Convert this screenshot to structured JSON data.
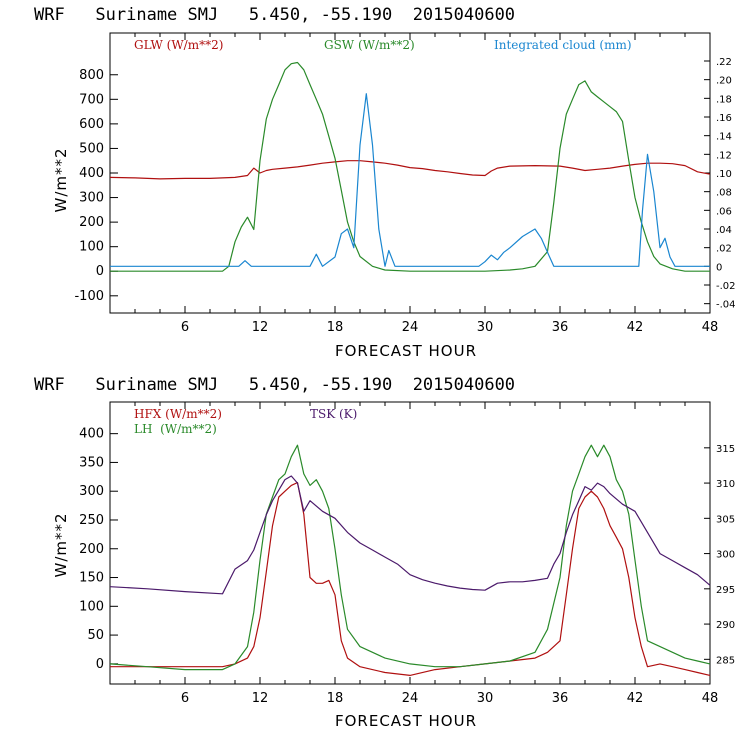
{
  "chart_data": [
    {
      "type": "line",
      "title": "WRF   Suriname SMJ   5.450, -55.190  2015040600",
      "xlabel": "FORECAST HOUR",
      "ylabel": "W/m**2",
      "xlim": [
        0,
        48
      ],
      "ylim": [
        -170,
        970
      ],
      "xticks": [
        "6",
        "12",
        "18",
        "24",
        "30",
        "36",
        "42",
        "48"
      ],
      "yticks": [
        "-100",
        "0",
        "100",
        "200",
        "300",
        "400",
        "500",
        "600",
        "700",
        "800"
      ],
      "y2lim": [
        -0.05,
        0.25
      ],
      "y2ticks": [
        "-.04",
        "-.02",
        "0",
        ".02",
        ".04",
        ".06",
        ".08",
        ".10",
        ".12",
        ".14",
        ".16",
        ".18",
        ".20",
        ".22"
      ],
      "series": [
        {
          "name": "GLW (W/m**2)",
          "color": "#b01010",
          "axis": "left",
          "x": [
            0,
            2,
            4,
            6,
            8,
            10,
            11,
            11.5,
            12,
            12.5,
            13,
            14,
            15,
            16,
            17,
            18,
            19,
            20,
            21,
            22,
            23,
            24,
            25,
            26,
            27,
            28,
            29,
            30,
            30.5,
            31,
            32,
            34,
            36,
            37,
            38,
            39,
            40,
            41,
            42,
            43,
            44,
            45,
            46,
            47,
            48
          ],
          "values": [
            382,
            380,
            376,
            378,
            378,
            382,
            390,
            420,
            400,
            410,
            415,
            420,
            425,
            432,
            440,
            445,
            450,
            450,
            445,
            440,
            432,
            422,
            418,
            410,
            405,
            398,
            392,
            390,
            408,
            420,
            428,
            430,
            428,
            420,
            410,
            415,
            420,
            428,
            435,
            440,
            440,
            438,
            430,
            405,
            395
          ]
        },
        {
          "name": "GSW (W/m**2)",
          "color": "#2a8a2a",
          "axis": "left",
          "x": [
            0,
            9,
            9.5,
            10,
            10.5,
            11,
            11.5,
            12,
            12.5,
            13,
            13.5,
            14,
            14.5,
            15,
            15.5,
            16,
            16.5,
            17,
            17.5,
            18,
            18.5,
            19,
            19.5,
            20,
            21,
            22,
            24,
            30,
            32,
            33,
            34,
            35,
            35.5,
            36,
            36.5,
            37,
            37.5,
            38,
            38.5,
            39,
            39.5,
            40,
            40.5,
            41,
            41.5,
            42,
            42.5,
            43,
            43.5,
            44,
            45,
            46,
            48
          ],
          "values": [
            0,
            0,
            20,
            120,
            180,
            220,
            170,
            450,
            620,
            700,
            760,
            820,
            845,
            850,
            820,
            760,
            700,
            640,
            550,
            460,
            330,
            200,
            120,
            60,
            20,
            5,
            0,
            0,
            5,
            10,
            20,
            80,
            280,
            500,
            640,
            700,
            760,
            775,
            730,
            710,
            690,
            670,
            650,
            610,
            450,
            300,
            200,
            120,
            60,
            30,
            10,
            0,
            0
          ]
        },
        {
          "name": "Integrated cloud (mm)",
          "color": "#1a86d0",
          "axis": "right",
          "x": [
            0,
            10.3,
            10.8,
            11.3,
            16,
            16.5,
            17,
            18,
            18.5,
            19,
            19.5,
            20,
            20.5,
            21,
            21.5,
            22,
            22.3,
            22.8,
            23.2,
            29.5,
            30,
            30.5,
            31,
            31.5,
            32,
            33,
            34,
            34.5,
            35,
            35.5,
            42.3,
            42.6,
            43,
            43.5,
            44,
            44.4,
            44.8,
            45.2,
            46,
            48
          ],
          "values": [
            0,
            0,
            0.006,
            0,
            0,
            0.013,
            0,
            0.01,
            0.035,
            0.04,
            0.02,
            0.13,
            0.185,
            0.13,
            0.04,
            0,
            0.017,
            0,
            0,
            0,
            0.005,
            0.012,
            0.007,
            0.015,
            0.02,
            0.032,
            0.04,
            0.03,
            0.015,
            0,
            0,
            0.06,
            0.12,
            0.08,
            0.02,
            0.03,
            0.01,
            0,
            0,
            0
          ]
        }
      ]
    },
    {
      "type": "line",
      "title": "WRF   Suriname SMJ   5.450, -55.190  2015040600",
      "xlabel": "FORECAST HOUR",
      "ylabel": "W/m**2",
      "xlim": [
        0,
        48
      ],
      "ylim": [
        -35,
        455
      ],
      "xticks": [
        "6",
        "12",
        "18",
        "24",
        "30",
        "36",
        "42",
        "48"
      ],
      "yticks": [
        "0",
        "50",
        "100",
        "150",
        "200",
        "250",
        "300",
        "350",
        "400"
      ],
      "y2lim": [
        281.5,
        321.5
      ],
      "y2ticks": [
        "285",
        "290",
        "295",
        "300",
        "305",
        "310",
        "315"
      ],
      "series": [
        {
          "name": "HFX (W/m**2)",
          "color": "#b01010",
          "axis": "left",
          "x": [
            0,
            9,
            10,
            11,
            11.5,
            12,
            12.5,
            13,
            13.5,
            14,
            14.5,
            15,
            15.5,
            16,
            16.5,
            17,
            17.5,
            18,
            18.5,
            19,
            20,
            22,
            24,
            26,
            28,
            30,
            32,
            34,
            35,
            36,
            36.5,
            37,
            37.5,
            38,
            38.5,
            39,
            39.5,
            40,
            40.5,
            41,
            41.5,
            42,
            42.5,
            43,
            44,
            45,
            46,
            47,
            48
          ],
          "values": [
            -5,
            -5,
            0,
            10,
            30,
            80,
            160,
            240,
            290,
            300,
            310,
            315,
            260,
            150,
            140,
            140,
            145,
            120,
            40,
            10,
            -5,
            -15,
            -20,
            -10,
            -5,
            0,
            5,
            10,
            20,
            40,
            120,
            200,
            270,
            290,
            300,
            290,
            270,
            240,
            220,
            200,
            150,
            80,
            30,
            -5,
            0,
            -5,
            -10,
            -15,
            -20
          ]
        },
        {
          "name": "LH  (W/m**2)",
          "color": "#2a8a2a",
          "axis": "left",
          "x": [
            0,
            3,
            6,
            9,
            10,
            11,
            11.5,
            12,
            12.5,
            13,
            13.5,
            14,
            14.5,
            15,
            15.5,
            16,
            16.5,
            17,
            17.5,
            18,
            18.5,
            19,
            20,
            22,
            24,
            26,
            28,
            30,
            32,
            34,
            35,
            36,
            36.5,
            37,
            37.5,
            38,
            38.5,
            39,
            39.5,
            40,
            40.5,
            41,
            41.5,
            42,
            42.5,
            43,
            44,
            45,
            46,
            47,
            48
          ],
          "values": [
            0,
            -5,
            -10,
            -10,
            0,
            30,
            90,
            180,
            260,
            290,
            320,
            330,
            360,
            380,
            330,
            310,
            320,
            300,
            270,
            200,
            120,
            60,
            30,
            10,
            0,
            -5,
            -5,
            0,
            5,
            20,
            60,
            150,
            240,
            300,
            330,
            360,
            380,
            360,
            380,
            360,
            320,
            300,
            260,
            180,
            100,
            40,
            30,
            20,
            10,
            5,
            0
          ]
        },
        {
          "name": "TSK (K)",
          "color": "#4b1a6b",
          "axis": "right",
          "x": [
            0,
            3,
            6,
            9,
            10,
            11,
            11.5,
            12,
            12.5,
            13,
            13.5,
            14,
            14.5,
            15,
            15.5,
            16,
            17,
            18,
            19,
            20,
            21,
            22,
            23,
            24,
            25,
            26,
            27,
            28,
            29,
            30,
            31,
            32,
            33,
            34,
            35,
            35.5,
            36,
            36.5,
            37,
            37.5,
            38,
            38.5,
            39,
            39.5,
            40,
            41,
            42,
            43,
            44,
            45,
            46,
            47,
            48
          ],
          "values": [
            295.3,
            295.0,
            294.6,
            294.3,
            297.8,
            299.0,
            300.5,
            303.0,
            305.5,
            307.5,
            309.0,
            310.5,
            311.0,
            310.0,
            306.0,
            307.5,
            306.0,
            305.0,
            303.0,
            301.5,
            300.5,
            299.5,
            298.5,
            297.0,
            296.3,
            295.8,
            295.4,
            295.1,
            294.9,
            294.8,
            295.8,
            296.0,
            296.0,
            296.2,
            296.5,
            298.5,
            300.0,
            303.0,
            305.5,
            307.5,
            309.5,
            309.0,
            310.0,
            309.5,
            308.5,
            307.0,
            306.0,
            303.0,
            300.0,
            299.0,
            298.0,
            297.0,
            295.5
          ]
        }
      ]
    }
  ]
}
